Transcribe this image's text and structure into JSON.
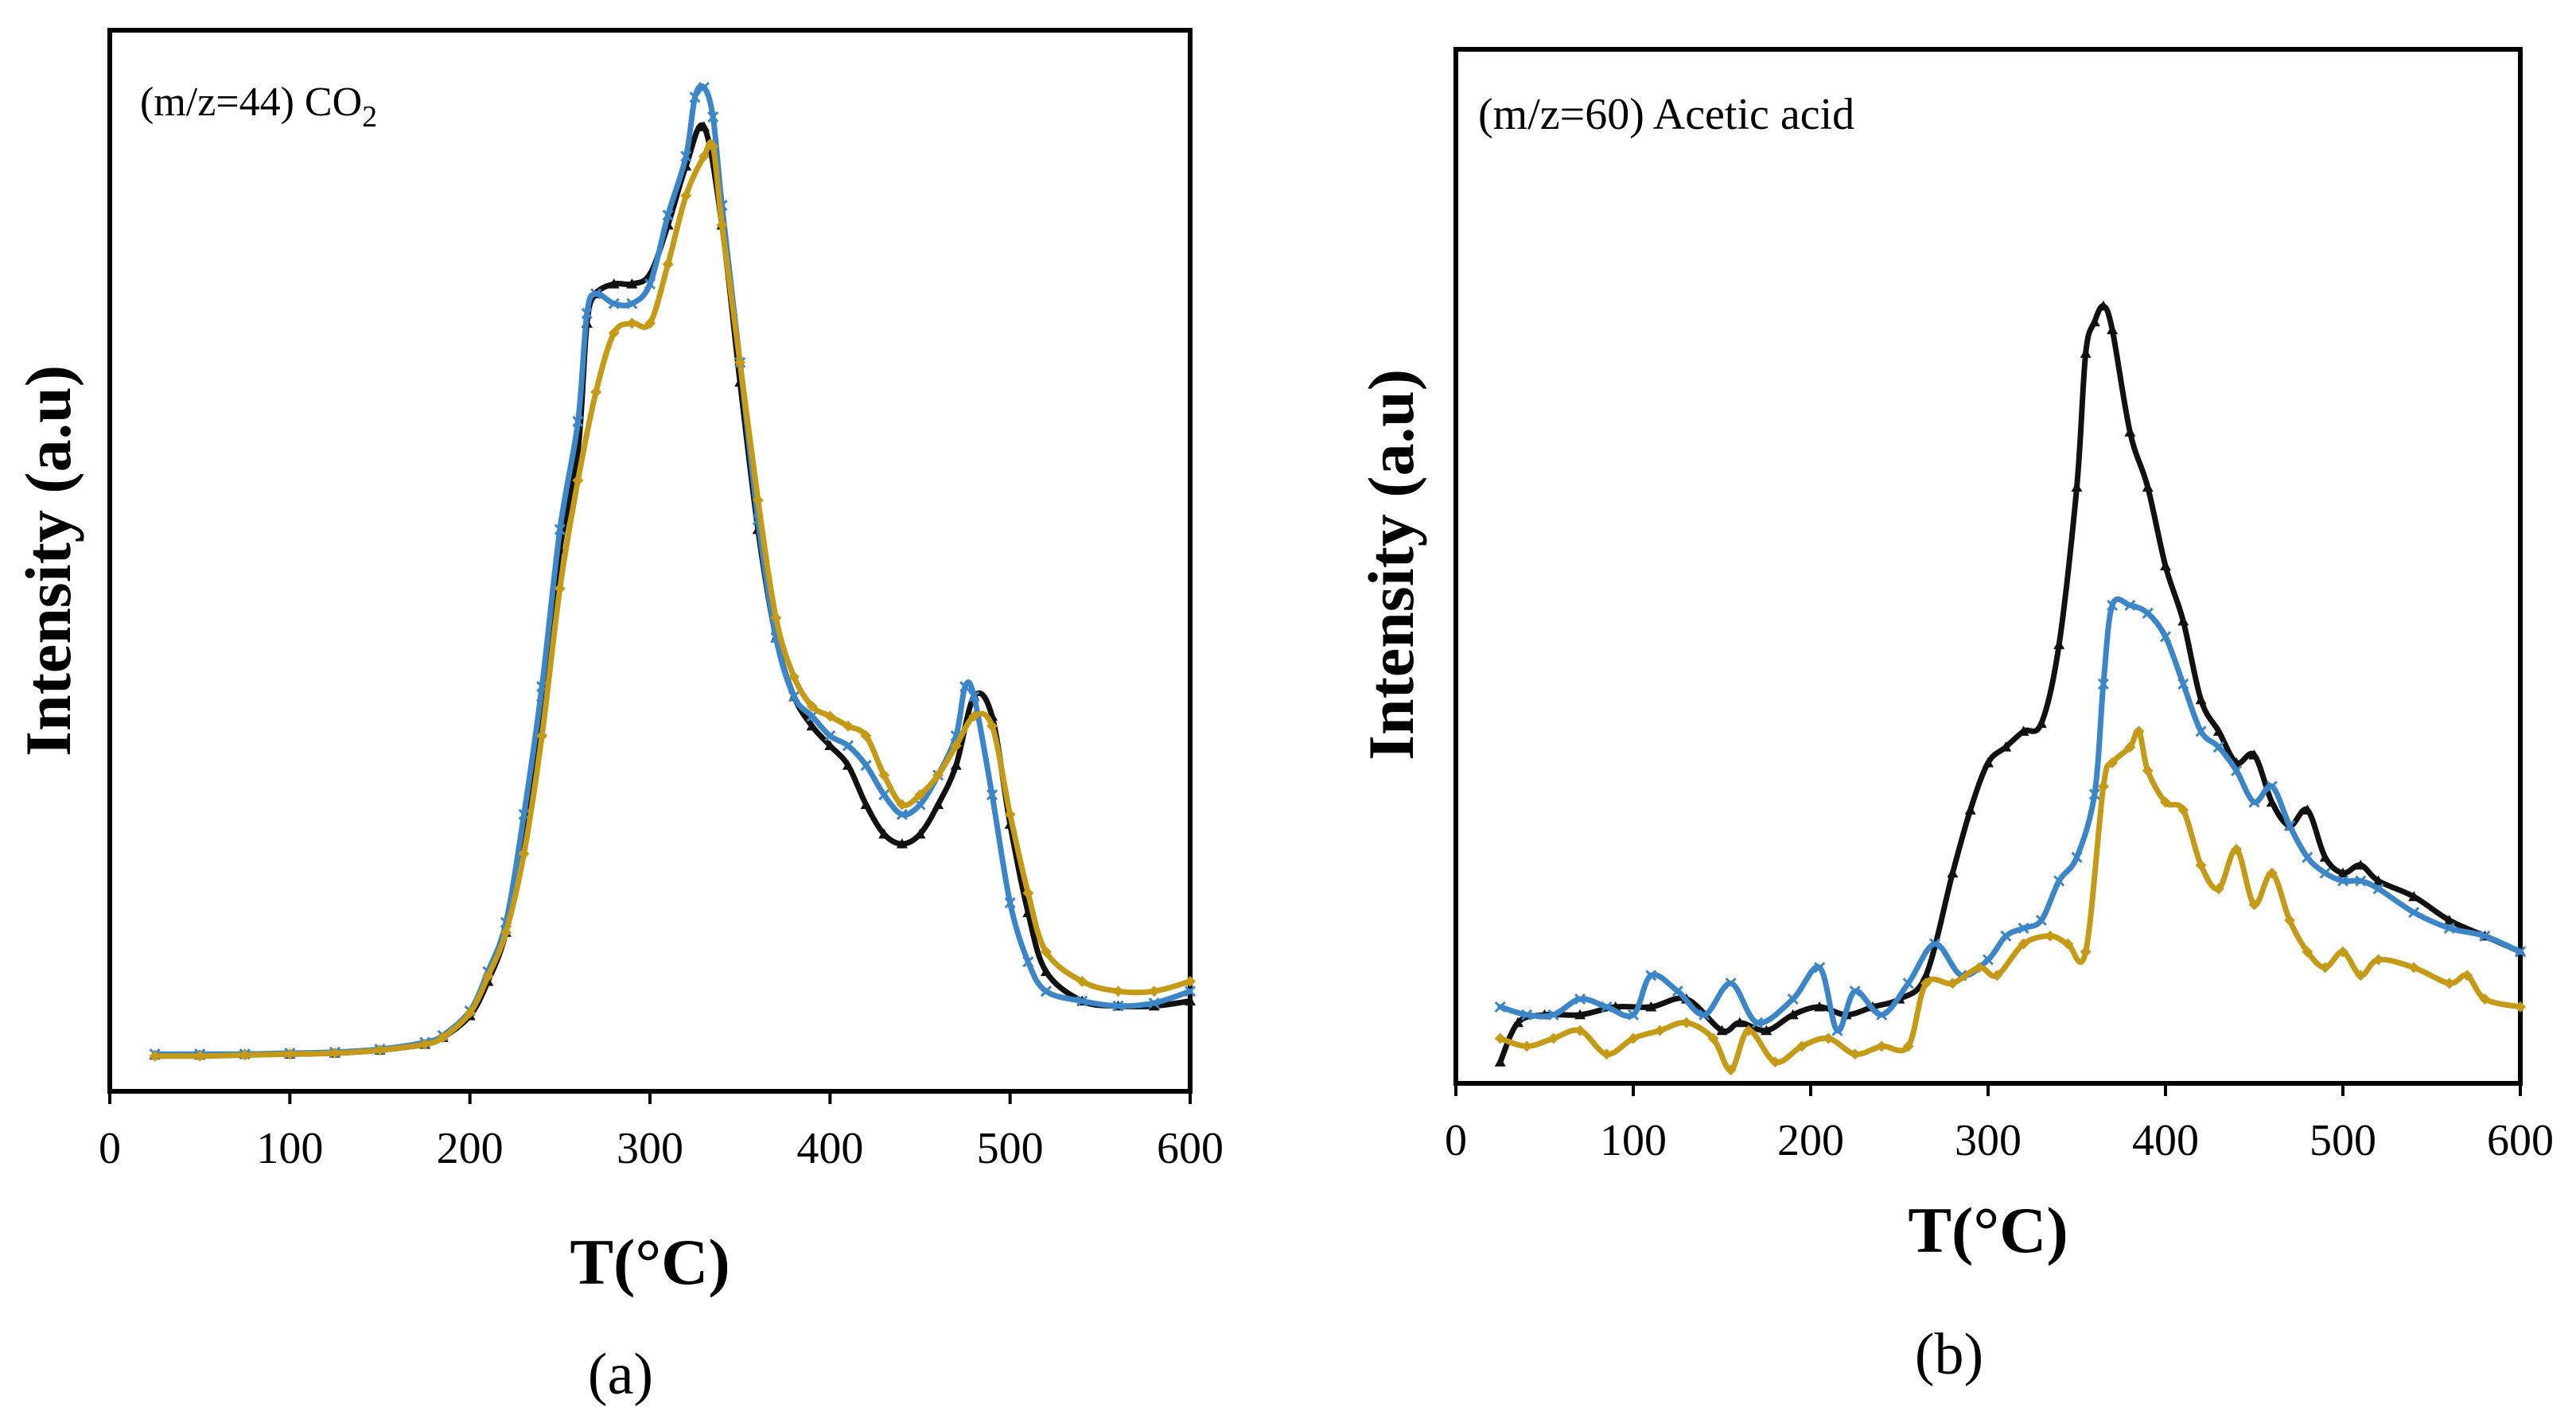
{
  "figure": {
    "panels": [
      "(a)",
      "(b)"
    ]
  },
  "colors": {
    "black_series": "#111111",
    "blue_series": "#3a86c8",
    "gold_series": "#c49a16",
    "axes": "#000000"
  },
  "chart_data": [
    {
      "type": "line",
      "panel_label": "(a)",
      "annotation_prefix": "(m/z=44) CO",
      "annotation_subscript": "2",
      "xlabel": "T(°C)",
      "ylabel": "Intensity (a.u)",
      "xlim": [
        0,
        600
      ],
      "ylim": [
        0,
        100
      ],
      "xticks": [
        0,
        100,
        200,
        300,
        400,
        500,
        600
      ],
      "y_tick_labels_shown": false,
      "series": [
        {
          "name": "black (triangle markers)",
          "color": "#111111",
          "marker": "triangle",
          "x": [
            25,
            50,
            75,
            100,
            125,
            150,
            175,
            185,
            200,
            210,
            220,
            230,
            240,
            250,
            260,
            265,
            270,
            280,
            290,
            300,
            310,
            320,
            330,
            340,
            350,
            360,
            370,
            380,
            390,
            400,
            410,
            420,
            430,
            440,
            450,
            460,
            470,
            480,
            490,
            500,
            510,
            520,
            540,
            560,
            580,
            600
          ],
          "y": [
            1.5,
            1.5,
            1.6,
            1.6,
            1.7,
            2,
            2.6,
            3.3,
            5.5,
            9,
            14,
            24,
            38,
            53,
            63,
            76,
            79,
            80,
            80,
            81,
            86,
            92,
            96,
            86,
            70,
            55,
            44,
            38,
            35,
            33,
            31,
            27,
            24,
            23,
            24,
            27,
            31,
            38,
            36,
            25,
            16,
            10,
            7,
            6.5,
            6.5,
            7
          ]
        },
        {
          "name": "blue (x markers)",
          "color": "#3a86c8",
          "marker": "x",
          "x": [
            25,
            50,
            75,
            100,
            125,
            150,
            175,
            185,
            200,
            210,
            220,
            230,
            240,
            250,
            260,
            265,
            270,
            280,
            290,
            300,
            310,
            320,
            325,
            330,
            335,
            340,
            350,
            360,
            370,
            380,
            390,
            400,
            410,
            420,
            430,
            440,
            450,
            460,
            470,
            475,
            480,
            490,
            500,
            510,
            520,
            540,
            560,
            580,
            600
          ],
          "y": [
            1.6,
            1.6,
            1.6,
            1.7,
            1.8,
            2.1,
            2.8,
            3.5,
            6,
            10,
            15,
            26,
            39,
            55,
            66,
            77,
            79,
            78,
            78,
            80,
            87,
            93,
            99,
            100,
            97,
            88,
            72,
            56,
            44,
            38,
            36,
            34,
            33,
            31,
            28,
            26,
            27,
            30,
            34,
            39,
            38,
            28,
            17,
            11,
            8,
            7,
            6.5,
            6.8,
            8
          ]
        },
        {
          "name": "gold (diamond markers)",
          "color": "#c49a16",
          "marker": "diamond",
          "x": [
            25,
            50,
            75,
            100,
            125,
            150,
            175,
            185,
            200,
            210,
            220,
            230,
            240,
            250,
            260,
            270,
            280,
            290,
            300,
            310,
            320,
            330,
            335,
            340,
            350,
            360,
            370,
            380,
            390,
            400,
            410,
            420,
            430,
            440,
            450,
            460,
            470,
            480,
            490,
            500,
            510,
            520,
            540,
            560,
            580,
            600
          ],
          "y": [
            1.4,
            1.4,
            1.5,
            1.6,
            1.7,
            2,
            2.6,
            3.3,
            5.8,
            9.5,
            14,
            22,
            34,
            49,
            60,
            69,
            75,
            76,
            76,
            82,
            89,
            93,
            94,
            86,
            72,
            58,
            46,
            40,
            37,
            36,
            35,
            34,
            30,
            27,
            28,
            30,
            33,
            36,
            35,
            26,
            18,
            12,
            9,
            8,
            8,
            9
          ]
        }
      ]
    },
    {
      "type": "line",
      "panel_label": "(b)",
      "annotation": "(m/z=60) Acetic acid",
      "xlabel": "T(°C)",
      "ylabel": "Intensity (a.u)",
      "xlim": [
        0,
        600
      ],
      "ylim": [
        0,
        100
      ],
      "xticks": [
        0,
        100,
        200,
        300,
        400,
        500,
        600
      ],
      "y_tick_labels_shown": false,
      "series": [
        {
          "name": "black (triangle markers)",
          "color": "#111111",
          "marker": "triangle",
          "x": [
            25,
            35,
            50,
            70,
            90,
            110,
            130,
            150,
            160,
            175,
            190,
            205,
            220,
            235,
            250,
            265,
            280,
            290,
            300,
            310,
            320,
            330,
            340,
            350,
            355,
            360,
            365,
            370,
            380,
            390,
            400,
            410,
            420,
            430,
            440,
            450,
            460,
            470,
            480,
            490,
            500,
            510,
            520,
            540,
            560,
            580,
            600
          ],
          "y": [
            2,
            7,
            8,
            8,
            9,
            9,
            10,
            6,
            7,
            6,
            8,
            9,
            8,
            9,
            10,
            13,
            26,
            34,
            40,
            42,
            44,
            45,
            55,
            75,
            92,
            96,
            98,
            95,
            82,
            75,
            65,
            58,
            48,
            44,
            40,
            41,
            35,
            32,
            34,
            28,
            26,
            27,
            25,
            23,
            20,
            18,
            16
          ]
        },
        {
          "name": "blue (x markers)",
          "color": "#3a86c8",
          "marker": "x",
          "x": [
            25,
            40,
            55,
            70,
            85,
            100,
            110,
            125,
            140,
            155,
            170,
            190,
            205,
            215,
            225,
            240,
            255,
            270,
            285,
            300,
            310,
            320,
            330,
            340,
            350,
            360,
            365,
            370,
            380,
            390,
            400,
            410,
            420,
            430,
            440,
            450,
            460,
            470,
            480,
            490,
            500,
            510,
            520,
            540,
            560,
            580,
            600
          ],
          "y": [
            9,
            8,
            8,
            10,
            9,
            8,
            13,
            11,
            8,
            12,
            7,
            10,
            14,
            6,
            11,
            8,
            12,
            17,
            13,
            15,
            18,
            19,
            20,
            25,
            28,
            36,
            50,
            60,
            60,
            59,
            56,
            50,
            44,
            42,
            39,
            35,
            37,
            32,
            28,
            26,
            25,
            25,
            24,
            21,
            19,
            18,
            16
          ]
        },
        {
          "name": "gold (diamond markers)",
          "color": "#c49a16",
          "marker": "diamond",
          "x": [
            25,
            40,
            55,
            70,
            85,
            100,
            115,
            130,
            145,
            155,
            165,
            180,
            195,
            210,
            225,
            240,
            255,
            265,
            280,
            295,
            305,
            320,
            335,
            345,
            355,
            365,
            370,
            380,
            385,
            390,
            400,
            410,
            420,
            430,
            440,
            450,
            460,
            470,
            480,
            490,
            500,
            510,
            520,
            540,
            560,
            570,
            580,
            600
          ],
          "y": [
            5,
            4,
            5,
            6,
            3,
            5,
            6,
            7,
            5,
            1,
            6,
            2,
            4,
            5,
            3,
            4,
            4,
            12,
            12,
            14,
            13,
            17,
            18,
            17,
            16,
            37,
            40,
            42,
            44,
            39,
            35,
            34,
            27,
            24,
            29,
            22,
            26,
            20,
            16,
            14,
            16,
            13,
            15,
            14,
            12,
            13,
            10,
            9
          ]
        }
      ]
    }
  ]
}
